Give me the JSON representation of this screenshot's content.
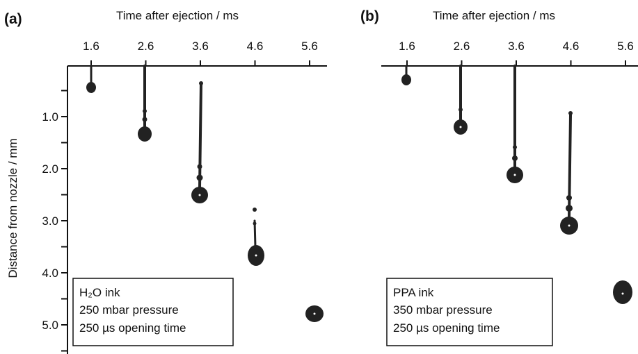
{
  "panels": [
    {
      "label": "(a)",
      "x_axis_title": "Time after ejection / ms",
      "x_ticks": [
        "1.6",
        "2.6",
        "3.6",
        "4.6",
        "5.6"
      ],
      "legend": [
        "H₂O ink",
        "250 mbar pressure",
        "250 µs opening time"
      ]
    },
    {
      "label": "(b)",
      "x_axis_title": "Time after ejection / ms",
      "x_ticks": [
        "1.6",
        "2.6",
        "3.6",
        "4.6",
        "5.6"
      ],
      "legend": [
        "PPA ink",
        "350 mbar pressure",
        "250 µs opening time"
      ]
    }
  ],
  "y_axis_title": "Distance from nozzle / mm",
  "y_ticks": [
    "1.0",
    "2.0",
    "3.0",
    "4.0",
    "5.0"
  ]
}
